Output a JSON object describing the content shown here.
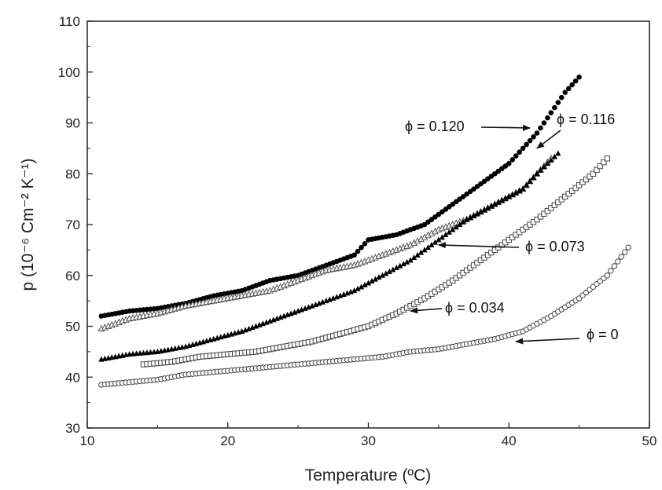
{
  "chart_data": {
    "type": "scatter",
    "title": "",
    "xlabel": "Temperature (ºC)",
    "ylabel": "p (10⁻⁶ Cm⁻² K⁻¹)",
    "xlim": [
      10,
      50
    ],
    "ylim": [
      30,
      110
    ],
    "xticks": [
      "10",
      "20",
      "30",
      "40",
      "50"
    ],
    "yticks": [
      "30",
      "40",
      "50",
      "60",
      "70",
      "80",
      "90",
      "100",
      "110"
    ],
    "grid": false,
    "legend": "none",
    "series": [
      {
        "name": "ϕ = 0.120",
        "marker": "filled-circle",
        "color": "#000000",
        "x": [
          11,
          13,
          15,
          17,
          19,
          21,
          23,
          25,
          27,
          29,
          30,
          32,
          34,
          36,
          38,
          40,
          41,
          42,
          43,
          44,
          45
        ],
        "y": [
          52,
          53,
          53.5,
          54.5,
          56,
          57,
          59,
          60,
          62,
          64,
          67,
          68,
          70,
          74,
          78,
          82,
          85,
          88,
          92,
          96,
          99
        ]
      },
      {
        "name": "ϕ = 0.116",
        "marker": "open-triangle",
        "color": "#000000",
        "x": [
          11,
          13,
          15,
          17,
          19,
          21,
          23,
          25,
          27,
          29,
          31,
          33,
          35,
          37,
          39,
          41,
          42,
          43
        ],
        "y": [
          49.5,
          51.5,
          52.5,
          54,
          55,
          56,
          57,
          59,
          61,
          62,
          64,
          66,
          69,
          71,
          74,
          77,
          80,
          83
        ]
      },
      {
        "name": "ϕ = 0.073",
        "marker": "filled-triangle",
        "color": "#000000",
        "x": [
          11,
          13,
          15,
          17,
          19,
          21,
          23,
          25,
          27,
          29,
          31,
          33,
          35,
          37,
          39,
          41,
          42,
          43.5
        ],
        "y": [
          43.5,
          44.5,
          45,
          46,
          47.5,
          49,
          51,
          53,
          55,
          57,
          60,
          63,
          67,
          71,
          74,
          77,
          80,
          84
        ]
      },
      {
        "name": "ϕ = 0.034",
        "marker": "open-square",
        "color": "#000000",
        "x": [
          14,
          16,
          18,
          20,
          22,
          24,
          26,
          28,
          30,
          32,
          34,
          36,
          38,
          40,
          42,
          44,
          46,
          47
        ],
        "y": [
          42.5,
          43,
          44,
          44.5,
          45,
          46,
          47,
          48.5,
          50,
          52.5,
          55.5,
          59,
          63,
          67,
          71,
          75.5,
          80,
          83
        ]
      },
      {
        "name": "ϕ = 0",
        "marker": "open-circle",
        "color": "#000000",
        "x": [
          11,
          13,
          15,
          17,
          19,
          21,
          23,
          25,
          27,
          29,
          31,
          33,
          35,
          37,
          39,
          41,
          43,
          45,
          47,
          48.5
        ],
        "y": [
          38.5,
          39,
          39.5,
          40.5,
          41,
          41.5,
          42,
          42.5,
          43,
          43.5,
          44,
          45,
          45.5,
          46.5,
          47.5,
          49,
          52,
          55.5,
          60,
          65.5
        ]
      }
    ],
    "annotations": [
      {
        "text": "ϕ = 0.120",
        "arrow_to": [
          41.5,
          89
        ]
      },
      {
        "text": "ϕ = 0.116",
        "arrow_to": [
          42,
          85
        ]
      },
      {
        "text": "ϕ = 0.073",
        "arrow_to": [
          35,
          66
        ]
      },
      {
        "text": "ϕ = 0.034",
        "arrow_to": [
          33,
          53
        ]
      },
      {
        "text": "ϕ = 0",
        "arrow_to": [
          40.5,
          47
        ]
      }
    ]
  }
}
